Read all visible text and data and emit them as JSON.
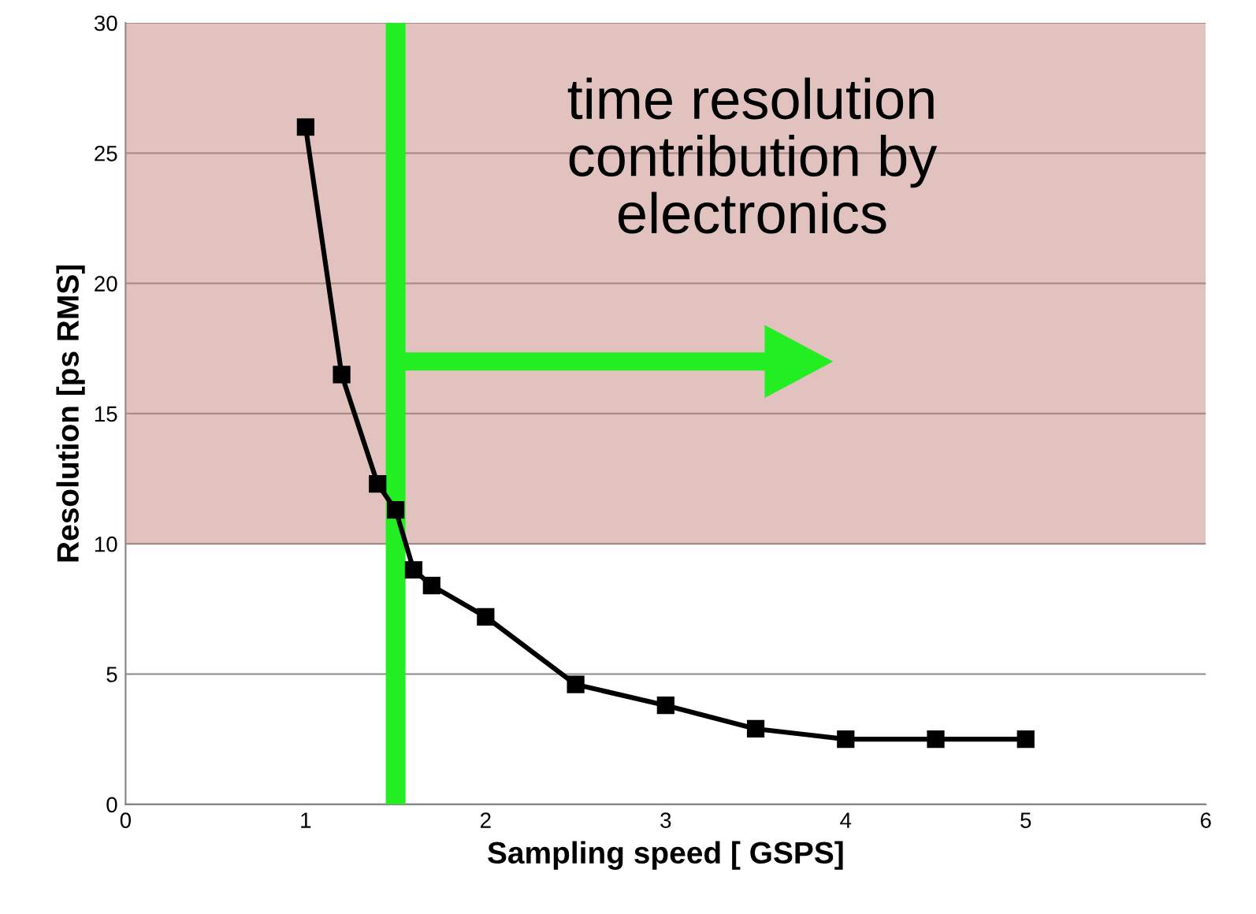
{
  "chart_data": {
    "type": "line",
    "xlabel": "Sampling speed [ GSPS]",
    "ylabel": "Resolution [ps RMS]",
    "x": [
      1,
      1.2,
      1.4,
      1.5,
      1.6,
      1.7,
      2,
      2.5,
      3,
      3.5,
      4,
      4.5,
      5
    ],
    "series": [
      {
        "color": "#000000",
        "values": [
          26,
          16.5,
          12.3,
          11.3,
          9.0,
          8.4,
          7.2,
          4.6,
          3.8,
          2.9,
          2.5,
          2.5,
          2.5
        ]
      }
    ],
    "marker": "square",
    "line_style": "solid",
    "grid": "y",
    "legend": false,
    "xlim": [
      0,
      6
    ],
    "xticks": [
      0,
      1,
      2,
      3,
      4,
      5,
      6
    ],
    "ylim": [
      0,
      30
    ],
    "yticks": [
      0,
      5,
      10,
      15,
      20,
      25,
      30
    ],
    "ref_lines": [
      {
        "axis": "x",
        "value": 1.5,
        "color": "#22ee22"
      }
    ],
    "bands": [
      {
        "axis": "y",
        "from": 10,
        "to": 30,
        "color": "#c9908a"
      }
    ],
    "annotations": [
      "time resolution\ncontribution by\nelectronics"
    ]
  }
}
